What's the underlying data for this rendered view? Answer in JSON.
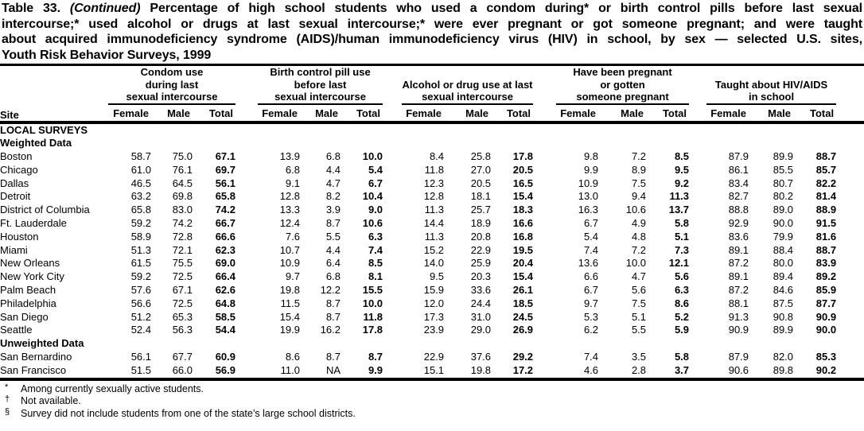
{
  "title": {
    "part1": "Table 33.",
    "continued": "(Continued)",
    "line1_rest": "Percentage of high school students who used a condom during* or birth control pills before last sexual",
    "line2": "intercourse;* used alcohol or drugs at last sexual intercourse;* were ever pregnant or got someone pregnant; and were taught",
    "line3": "about acquired immunodeficiency syndrome (AIDS)/human immunodeficiency virus (HIV) in school, by sex — selected U.S. sites,",
    "line4": "Youth Risk Behavior Surveys, 1999"
  },
  "table": {
    "site_header": "Site",
    "groups": [
      {
        "label_lines": [
          "Condom use",
          "during last",
          "sexual intercourse"
        ]
      },
      {
        "label_lines": [
          "Birth control pill use",
          "before last",
          "sexual intercourse"
        ]
      },
      {
        "label_lines": [
          "Alcohol or drug use at last",
          "sexual intercourse"
        ]
      },
      {
        "label_lines": [
          "Have been pregnant",
          "or gotten",
          "someone pregnant"
        ]
      },
      {
        "label_lines": [
          "Taught about HIV/AIDS",
          "in school"
        ]
      }
    ],
    "sub_headers": [
      "Female",
      "Male",
      "Total"
    ],
    "sections": [
      {
        "type": "section",
        "label": "LOCAL SURVEYS"
      },
      {
        "type": "subsection",
        "label": "Weighted Data",
        "rows": [
          {
            "site": "Boston",
            "values": [
              "58.7",
              "75.0",
              "67.1",
              "13.9",
              "6.8",
              "10.0",
              "8.4",
              "25.8",
              "17.8",
              "9.8",
              "7.2",
              "8.5",
              "87.9",
              "89.9",
              "88.7"
            ]
          },
          {
            "site": "Chicago",
            "values": [
              "61.0",
              "76.1",
              "69.7",
              "6.8",
              "4.4",
              "5.4",
              "11.8",
              "27.0",
              "20.5",
              "9.9",
              "8.9",
              "9.5",
              "86.1",
              "85.5",
              "85.7"
            ]
          },
          {
            "site": "Dallas",
            "values": [
              "46.5",
              "64.5",
              "56.1",
              "9.1",
              "4.7",
              "6.7",
              "12.3",
              "20.5",
              "16.5",
              "10.9",
              "7.5",
              "9.2",
              "83.4",
              "80.7",
              "82.2"
            ]
          },
          {
            "site": "Detroit",
            "values": [
              "63.2",
              "69.8",
              "65.8",
              "12.8",
              "8.2",
              "10.4",
              "12.8",
              "18.1",
              "15.4",
              "13.0",
              "9.4",
              "11.3",
              "82.7",
              "80.2",
              "81.4"
            ]
          },
          {
            "site": "District of Columbia",
            "values": [
              "65.8",
              "83.0",
              "74.2",
              "13.3",
              "3.9",
              "9.0",
              "11.3",
              "25.7",
              "18.3",
              "16.3",
              "10.6",
              "13.7",
              "88.8",
              "89.0",
              "88.9"
            ]
          },
          {
            "site": "Ft. Lauderdale",
            "values": [
              "59.2",
              "74.2",
              "66.7",
              "12.4",
              "8.7",
              "10.6",
              "14.4",
              "18.9",
              "16.6",
              "6.7",
              "4.9",
              "5.8",
              "92.9",
              "90.0",
              "91.5"
            ]
          },
          {
            "site": "Houston",
            "values": [
              "58.9",
              "72.8",
              "66.6",
              "7.6",
              "5.5",
              "6.3",
              "11.3",
              "20.8",
              "16.8",
              "5.4",
              "4.8",
              "5.1",
              "83.6",
              "79.9",
              "81.6"
            ]
          },
          {
            "site": "Miami",
            "values": [
              "51.3",
              "72.1",
              "62.3",
              "10.7",
              "4.4",
              "7.4",
              "15.2",
              "22.9",
              "19.5",
              "7.4",
              "7.2",
              "7.3",
              "89.1",
              "88.4",
              "88.7"
            ]
          },
          {
            "site": "New Orleans",
            "values": [
              "61.5",
              "75.5",
              "69.0",
              "10.9",
              "6.4",
              "8.5",
              "14.0",
              "25.9",
              "20.4",
              "13.6",
              "10.0",
              "12.1",
              "87.2",
              "80.0",
              "83.9"
            ]
          },
          {
            "site": "New York City",
            "values": [
              "59.2",
              "72.5",
              "66.4",
              "9.7",
              "6.8",
              "8.1",
              "9.5",
              "20.3",
              "15.4",
              "6.6",
              "4.7",
              "5.6",
              "89.1",
              "89.4",
              "89.2"
            ]
          },
          {
            "site": "Palm Beach",
            "values": [
              "57.6",
              "67.1",
              "62.6",
              "19.8",
              "12.2",
              "15.5",
              "15.9",
              "33.6",
              "26.1",
              "6.7",
              "5.6",
              "6.3",
              "87.2",
              "84.6",
              "85.9"
            ]
          },
          {
            "site": "Philadelphia",
            "values": [
              "56.6",
              "72.5",
              "64.8",
              "11.5",
              "8.7",
              "10.0",
              "12.0",
              "24.4",
              "18.5",
              "9.7",
              "7.5",
              "8.6",
              "88.1",
              "87.5",
              "87.7"
            ]
          },
          {
            "site": "San Diego",
            "values": [
              "51.2",
              "65.3",
              "58.5",
              "15.4",
              "8.7",
              "11.8",
              "17.3",
              "31.0",
              "24.5",
              "5.3",
              "5.1",
              "5.2",
              "91.3",
              "90.8",
              "90.9"
            ]
          },
          {
            "site": "Seattle",
            "values": [
              "52.4",
              "56.3",
              "54.4",
              "19.9",
              "16.2",
              "17.8",
              "23.9",
              "29.0",
              "26.9",
              "6.2",
              "5.5",
              "5.9",
              "90.9",
              "89.9",
              "90.0"
            ]
          }
        ]
      },
      {
        "type": "subsection",
        "label": "Unweighted Data",
        "rows": [
          {
            "site": "San Bernardino",
            "values": [
              "56.1",
              "67.7",
              "60.9",
              "8.6",
              "8.7",
              "8.7",
              "22.9",
              "37.6",
              "29.2",
              "7.4",
              "3.5",
              "5.8",
              "87.9",
              "82.0",
              "85.3"
            ]
          },
          {
            "site": "San Francisco",
            "values": [
              "51.5",
              "66.0",
              "56.9",
              "11.0",
              "NA",
              "9.9",
              "15.1",
              "19.8",
              "17.2",
              "4.6",
              "2.8",
              "3.7",
              "90.6",
              "89.8",
              "90.2"
            ]
          }
        ]
      }
    ]
  },
  "footnotes": [
    {
      "marker": "*",
      "text": "Among currently sexually active students."
    },
    {
      "marker": "†",
      "text": "Not available."
    },
    {
      "marker": "§",
      "text": "Survey did not include students from one of the state’s large school districts."
    }
  ]
}
